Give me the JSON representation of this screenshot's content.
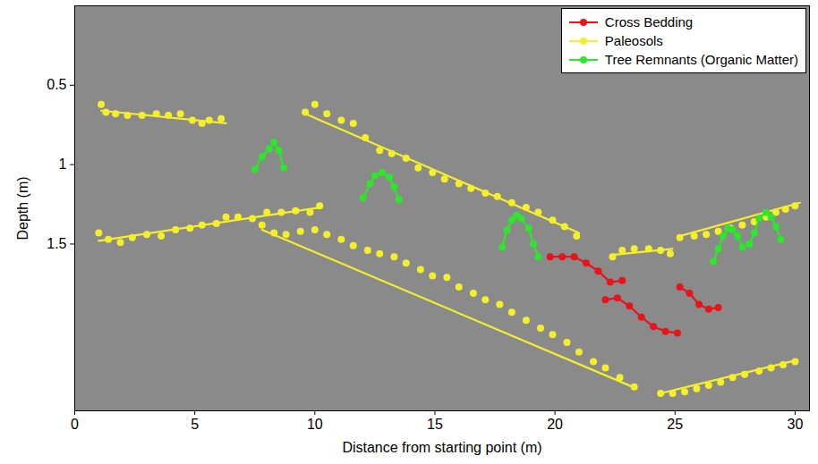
{
  "chart_data": {
    "type": "scatter",
    "xlabel": "Distance from starting point (m)",
    "ylabel": "Depth (m)",
    "xlim": [
      0,
      30.6
    ],
    "ylim": [
      0,
      2.55
    ],
    "xticks": [
      0,
      5,
      10,
      15,
      20,
      25,
      30
    ],
    "yticks": [
      0.5,
      1,
      1.5
    ],
    "legend": "top-right",
    "series": [
      {
        "name": "Cross Bedding",
        "color": "#e8141b",
        "marker": "circle",
        "line_style": "solid",
        "segments": [
          {
            "x": [
              19.8,
              20.3,
              20.8,
              21.3,
              21.8,
              22.3,
              22.8
            ],
            "y": [
              1.58,
              1.58,
              1.58,
              1.62,
              1.67,
              1.74,
              1.73
            ]
          },
          {
            "x": [
              22.1,
              22.6,
              23.1,
              23.6,
              24.1,
              24.6,
              25.1
            ],
            "y": [
              1.85,
              1.84,
              1.89,
              1.96,
              2.02,
              2.05,
              2.06
            ]
          },
          {
            "x": [
              25.2,
              25.6,
              26.0,
              26.4,
              26.8
            ],
            "y": [
              1.77,
              1.81,
              1.88,
              1.91,
              1.9
            ]
          }
        ]
      },
      {
        "name": "Paleosols",
        "color": "#f5ef2a",
        "marker": "circle",
        "line_style": "solid",
        "segments": [
          {
            "x": [
              1.1,
              1.3,
              1.7,
              2.2,
              2.8,
              3.4,
              3.9,
              4.4,
              4.9,
              5.3,
              5.6,
              6.1
            ],
            "y": [
              0.62,
              0.67,
              0.68,
              0.69,
              0.69,
              0.68,
              0.69,
              0.68,
              0.72,
              0.74,
              0.72,
              0.71
            ],
            "fit": {
              "x": [
                1.1,
                6.3
              ],
              "y": [
                0.66,
                0.74
              ]
            }
          },
          {
            "x": [
              9.6,
              10.0,
              10.5,
              11.1,
              11.6,
              12.1,
              12.7,
              13.2,
              13.8,
              14.3,
              14.9,
              15.4,
              16.0,
              16.5,
              17.1,
              17.6,
              18.2,
              18.8,
              19.3,
              19.9,
              20.4,
              20.9
            ],
            "y": [
              0.67,
              0.62,
              0.68,
              0.72,
              0.74,
              0.83,
              0.91,
              0.93,
              0.96,
              1.02,
              1.05,
              1.09,
              1.12,
              1.15,
              1.18,
              1.2,
              1.24,
              1.27,
              1.3,
              1.35,
              1.39,
              1.45
            ],
            "fit": {
              "x": [
                9.6,
                21.0
              ],
              "y": [
                0.68,
                1.43
              ]
            }
          },
          {
            "x": [
              1.0,
              1.4,
              1.9,
              2.4,
              3.0,
              3.6,
              4.2,
              4.8,
              5.3,
              5.9,
              6.3,
              6.8,
              7.4,
              8.0,
              8.6,
              9.2,
              9.8,
              10.2
            ],
            "y": [
              1.43,
              1.47,
              1.49,
              1.46,
              1.44,
              1.45,
              1.41,
              1.4,
              1.38,
              1.37,
              1.33,
              1.33,
              1.34,
              1.3,
              1.3,
              1.29,
              1.3,
              1.26
            ],
            "fit": {
              "x": [
                1.0,
                10.2
              ],
              "y": [
                1.48,
                1.27
              ]
            }
          },
          {
            "x": [
              7.8,
              8.3,
              8.8,
              9.4,
              10.0,
              10.5,
              11.1,
              11.6,
              12.2,
              12.7,
              13.3,
              13.8,
              14.4,
              14.9,
              15.5,
              16.0,
              16.6,
              17.1,
              17.7,
              18.2,
              18.8,
              19.4,
              19.9,
              20.5,
              21.0,
              21.6,
              22.1,
              22.7,
              23.3
            ],
            "y": [
              1.38,
              1.43,
              1.44,
              1.42,
              1.41,
              1.44,
              1.47,
              1.51,
              1.54,
              1.56,
              1.58,
              1.62,
              1.66,
              1.7,
              1.71,
              1.77,
              1.81,
              1.85,
              1.88,
              1.93,
              1.98,
              2.03,
              2.07,
              2.12,
              2.18,
              2.24,
              2.28,
              2.34,
              2.4
            ],
            "fit": {
              "x": [
                7.8,
                23.4
              ],
              "y": [
                1.41,
                2.41
              ]
            }
          },
          {
            "x": [
              22.4,
              22.8,
              23.3,
              23.9,
              24.4,
              24.8
            ],
            "y": [
              1.58,
              1.54,
              1.53,
              1.53,
              1.54,
              1.56
            ],
            "fit": {
              "x": [
                22.3,
                24.9
              ],
              "y": [
                1.57,
                1.53
              ]
            }
          },
          {
            "x": [
              25.2,
              25.8,
              26.3,
              26.8,
              27.3,
              27.8,
              28.3,
              28.8,
              29.2,
              29.6,
              30.0
            ],
            "y": [
              1.46,
              1.45,
              1.44,
              1.42,
              1.4,
              1.38,
              1.36,
              1.33,
              1.3,
              1.28,
              1.26
            ],
            "fit": {
              "x": [
                25.2,
                30.2
              ],
              "y": [
                1.45,
                1.24
              ]
            }
          },
          {
            "x": [
              24.4,
              24.9,
              25.4,
              25.9,
              26.4,
              26.9,
              27.4,
              27.9,
              28.5,
              29.0,
              29.5,
              30.0
            ],
            "y": [
              2.44,
              2.44,
              2.43,
              2.41,
              2.39,
              2.37,
              2.34,
              2.32,
              2.3,
              2.28,
              2.26,
              2.24
            ],
            "fit": {
              "x": [
                24.4,
                30.1
              ],
              "y": [
                2.44,
                2.23
              ]
            }
          }
        ]
      },
      {
        "name": "Tree Remnants (Organic Matter)",
        "color": "#2ee62b",
        "marker": "circle",
        "line_style": "solid",
        "segments": [
          {
            "x": [
              7.5,
              7.8,
              8.1,
              8.3,
              8.5,
              8.7
            ],
            "y": [
              1.03,
              0.95,
              0.9,
              0.86,
              0.91,
              1.02
            ]
          },
          {
            "x": [
              12.0,
              12.3,
              12.5,
              12.8,
              13.1,
              13.3,
              13.5
            ],
            "y": [
              1.21,
              1.12,
              1.07,
              1.05,
              1.08,
              1.14,
              1.22
            ]
          },
          {
            "x": [
              17.8,
              18.0,
              18.2,
              18.4,
              18.6,
              18.9,
              19.1,
              19.3
            ],
            "y": [
              1.52,
              1.41,
              1.35,
              1.32,
              1.34,
              1.4,
              1.5,
              1.58
            ]
          },
          {
            "x": [
              26.6,
              26.8,
              27.0,
              27.2,
              27.4,
              27.6,
              27.8
            ],
            "y": [
              1.61,
              1.53,
              1.45,
              1.4,
              1.41,
              1.45,
              1.52
            ]
          },
          {
            "x": [
              28.1,
              28.3,
              28.5,
              28.8,
              29.0,
              29.2,
              29.4
            ],
            "y": [
              1.5,
              1.43,
              1.34,
              1.3,
              1.33,
              1.39,
              1.47
            ]
          }
        ]
      }
    ]
  }
}
